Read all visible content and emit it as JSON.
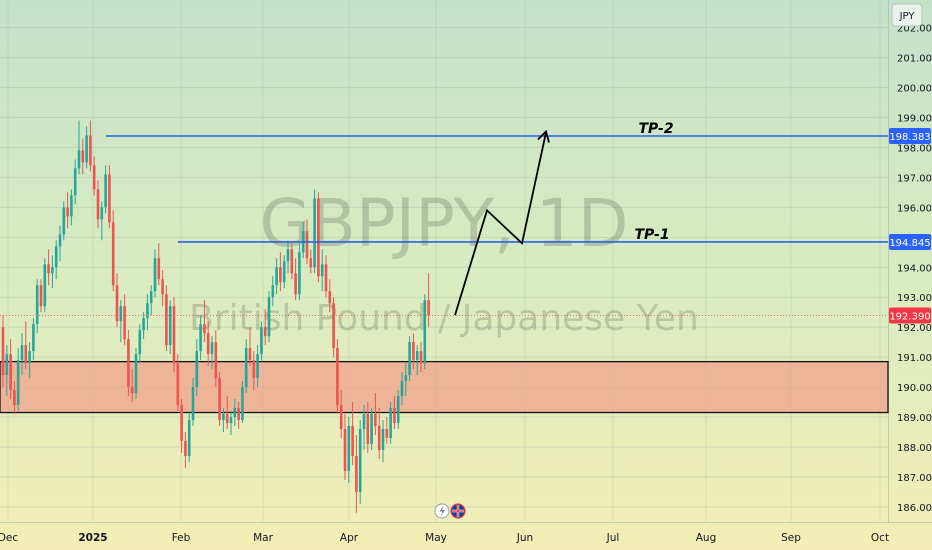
{
  "chart_data": {
    "type": "candlestick",
    "symbol_watermark": "GBPJPY, 1D",
    "description_watermark": "British Pound / Japanese Yen",
    "currency": "JPY",
    "ylim": [
      185.6,
      202.6
    ],
    "y_ticks": [
      "186.000",
      "187.000",
      "188.000",
      "189.000",
      "190.000",
      "191.000",
      "192.000",
      "193.000",
      "194.000",
      "195.000",
      "196.000",
      "197.000",
      "198.000",
      "199.000",
      "200.000",
      "201.000",
      "202.000"
    ],
    "x_ticks": [
      {
        "label": "Dec",
        "bold": false
      },
      {
        "label": "2025",
        "bold": true
      },
      {
        "label": "Feb",
        "bold": false
      },
      {
        "label": "Mar",
        "bold": false
      },
      {
        "label": "Apr",
        "bold": false
      },
      {
        "label": "May",
        "bold": false
      },
      {
        "label": "Jun",
        "bold": false
      },
      {
        "label": "Jul",
        "bold": false
      },
      {
        "label": "Aug",
        "bold": false
      },
      {
        "label": "Sep",
        "bold": false
      },
      {
        "label": "Oct",
        "bold": false
      }
    ],
    "levels": [
      {
        "name": "TP-2",
        "price": 198.383,
        "label": "198.383"
      },
      {
        "name": "TP-1",
        "price": 194.845,
        "label": "194.845"
      }
    ],
    "last_price": {
      "price": 192.39,
      "label": "192.390"
    },
    "demand_zone": {
      "low": 189.15,
      "high": 190.85
    },
    "projection_path": [
      192.4,
      195.9,
      194.8,
      198.5
    ],
    "candles": [
      [
        192.0,
        192.4,
        190.0,
        190.4
      ],
      [
        190.4,
        191.4,
        189.7,
        191.1
      ],
      [
        191.1,
        191.6,
        189.6,
        189.9
      ],
      [
        189.9,
        190.2,
        189.1,
        189.4
      ],
      [
        189.4,
        191.3,
        189.2,
        190.9
      ],
      [
        190.9,
        191.8,
        190.4,
        191.4
      ],
      [
        191.4,
        192.2,
        190.6,
        190.8
      ],
      [
        190.8,
        191.5,
        190.3,
        191.2
      ],
      [
        191.2,
        192.3,
        190.9,
        192.1
      ],
      [
        192.1,
        193.6,
        191.8,
        193.4
      ],
      [
        193.4,
        193.6,
        192.5,
        192.7
      ],
      [
        192.7,
        194.3,
        192.5,
        194.1
      ],
      [
        194.1,
        194.6,
        193.4,
        193.8
      ],
      [
        193.8,
        194.4,
        193.3,
        194.0
      ],
      [
        194.0,
        194.9,
        193.6,
        194.7
      ],
      [
        194.7,
        195.4,
        194.2,
        195.1
      ],
      [
        195.1,
        196.2,
        194.9,
        196.0
      ],
      [
        196.0,
        196.5,
        195.3,
        195.7
      ],
      [
        195.7,
        196.6,
        195.4,
        196.4
      ],
      [
        196.4,
        197.6,
        196.1,
        197.3
      ],
      [
        197.3,
        198.9,
        197.1,
        197.9
      ],
      [
        197.9,
        198.3,
        197.1,
        197.5
      ],
      [
        197.5,
        198.7,
        197.3,
        198.4
      ],
      [
        198.4,
        198.9,
        197.2,
        197.4
      ],
      [
        197.4,
        197.7,
        196.4,
        196.6
      ],
      [
        196.6,
        196.9,
        195.3,
        195.6
      ],
      [
        195.6,
        196.2,
        194.9,
        196.0
      ],
      [
        196.0,
        197.4,
        195.8,
        197.1
      ],
      [
        197.1,
        197.4,
        195.3,
        195.5
      ],
      [
        195.5,
        195.9,
        193.2,
        193.4
      ],
      [
        193.4,
        193.8,
        192.0,
        192.2
      ],
      [
        192.2,
        192.9,
        191.5,
        192.7
      ],
      [
        192.7,
        193.1,
        191.4,
        191.6
      ],
      [
        191.6,
        191.9,
        189.7,
        190.0
      ],
      [
        190.0,
        190.6,
        189.5,
        189.8
      ],
      [
        189.8,
        191.3,
        189.6,
        191.1
      ],
      [
        191.1,
        192.1,
        190.8,
        191.9
      ],
      [
        191.9,
        192.5,
        191.6,
        192.3
      ],
      [
        192.3,
        193.1,
        191.9,
        192.8
      ],
      [
        192.8,
        193.4,
        192.4,
        193.2
      ],
      [
        193.2,
        194.6,
        193.0,
        194.3
      ],
      [
        194.3,
        194.8,
        193.4,
        193.6
      ],
      [
        193.6,
        193.9,
        192.7,
        193.1
      ],
      [
        193.1,
        193.4,
        191.2,
        191.4
      ],
      [
        191.4,
        192.9,
        191.1,
        192.7
      ],
      [
        192.7,
        193.0,
        190.5,
        190.8
      ],
      [
        190.8,
        191.1,
        189.2,
        189.4
      ],
      [
        189.4,
        189.6,
        187.8,
        188.2
      ],
      [
        188.2,
        188.5,
        187.3,
        187.7
      ],
      [
        187.7,
        189.2,
        187.5,
        188.9
      ],
      [
        188.9,
        190.3,
        188.7,
        190.0
      ],
      [
        190.0,
        191.6,
        189.7,
        191.2
      ],
      [
        191.2,
        192.4,
        190.9,
        192.1
      ],
      [
        192.1,
        192.9,
        191.5,
        191.8
      ],
      [
        191.8,
        192.2,
        190.7,
        191.1
      ],
      [
        191.1,
        191.7,
        190.6,
        191.5
      ],
      [
        191.5,
        191.9,
        190.0,
        190.3
      ],
      [
        190.3,
        190.5,
        188.7,
        188.9
      ],
      [
        188.9,
        189.3,
        188.5,
        189.1
      ],
      [
        189.1,
        189.7,
        188.6,
        188.8
      ],
      [
        188.8,
        189.2,
        188.4,
        189.0
      ],
      [
        189.0,
        189.6,
        188.7,
        189.3
      ],
      [
        189.3,
        189.5,
        188.6,
        188.9
      ],
      [
        188.9,
        190.2,
        188.8,
        190.0
      ],
      [
        190.0,
        191.6,
        189.8,
        191.3
      ],
      [
        191.3,
        192.0,
        190.7,
        190.9
      ],
      [
        190.9,
        191.2,
        189.9,
        190.3
      ],
      [
        190.3,
        191.4,
        190.0,
        191.1
      ],
      [
        191.1,
        192.2,
        190.9,
        192.0
      ],
      [
        192.0,
        192.6,
        191.4,
        191.7
      ],
      [
        191.7,
        193.2,
        191.5,
        193.0
      ],
      [
        193.0,
        193.7,
        192.7,
        193.4
      ],
      [
        193.4,
        194.3,
        193.1,
        194.0
      ],
      [
        194.0,
        194.5,
        193.2,
        193.5
      ],
      [
        193.5,
        194.4,
        193.3,
        194.2
      ],
      [
        194.2,
        194.9,
        193.8,
        194.6
      ],
      [
        194.6,
        194.8,
        193.6,
        193.8
      ],
      [
        193.8,
        194.3,
        192.9,
        193.1
      ],
      [
        193.1,
        194.8,
        192.9,
        194.5
      ],
      [
        194.5,
        195.5,
        194.3,
        195.2
      ],
      [
        195.2,
        195.6,
        194.1,
        194.3
      ],
      [
        194.3,
        194.6,
        193.8,
        194.0
      ],
      [
        194.0,
        196.6,
        193.8,
        196.3
      ],
      [
        196.3,
        196.5,
        193.5,
        193.7
      ],
      [
        193.7,
        194.6,
        193.2,
        194.1
      ],
      [
        194.1,
        194.4,
        193.0,
        193.2
      ],
      [
        193.2,
        193.6,
        192.5,
        192.8
      ],
      [
        192.8,
        193.0,
        191.0,
        191.3
      ],
      [
        191.3,
        191.6,
        189.1,
        189.4
      ],
      [
        189.4,
        189.9,
        188.3,
        188.6
      ],
      [
        188.6,
        189.1,
        186.9,
        187.2
      ],
      [
        187.2,
        189.0,
        186.8,
        188.7
      ],
      [
        188.7,
        189.5,
        187.4,
        187.7
      ],
      [
        187.7,
        188.4,
        185.8,
        186.5
      ],
      [
        186.5,
        188.9,
        186.1,
        188.6
      ],
      [
        188.6,
        189.4,
        187.9,
        189.1
      ],
      [
        189.1,
        189.5,
        187.8,
        188.1
      ],
      [
        188.1,
        189.3,
        187.9,
        189.1
      ],
      [
        189.1,
        189.8,
        188.4,
        188.7
      ],
      [
        188.7,
        189.3,
        187.6,
        187.9
      ],
      [
        187.9,
        188.9,
        187.5,
        188.6
      ],
      [
        188.6,
        189.0,
        188.1,
        188.3
      ],
      [
        188.3,
        189.5,
        188.1,
        189.3
      ],
      [
        189.3,
        189.7,
        188.6,
        188.8
      ],
      [
        188.8,
        189.9,
        188.6,
        189.7
      ],
      [
        189.7,
        190.5,
        189.4,
        190.2
      ],
      [
        190.2,
        190.8,
        189.7,
        190.4
      ],
      [
        190.4,
        191.7,
        190.2,
        191.5
      ],
      [
        191.5,
        191.8,
        190.6,
        190.9
      ],
      [
        190.9,
        191.4,
        190.4,
        191.2
      ],
      [
        191.2,
        191.5,
        190.5,
        190.8
      ],
      [
        190.8,
        193.1,
        190.6,
        192.9
      ],
      [
        192.9,
        193.8,
        192.0,
        192.4
      ]
    ]
  }
}
